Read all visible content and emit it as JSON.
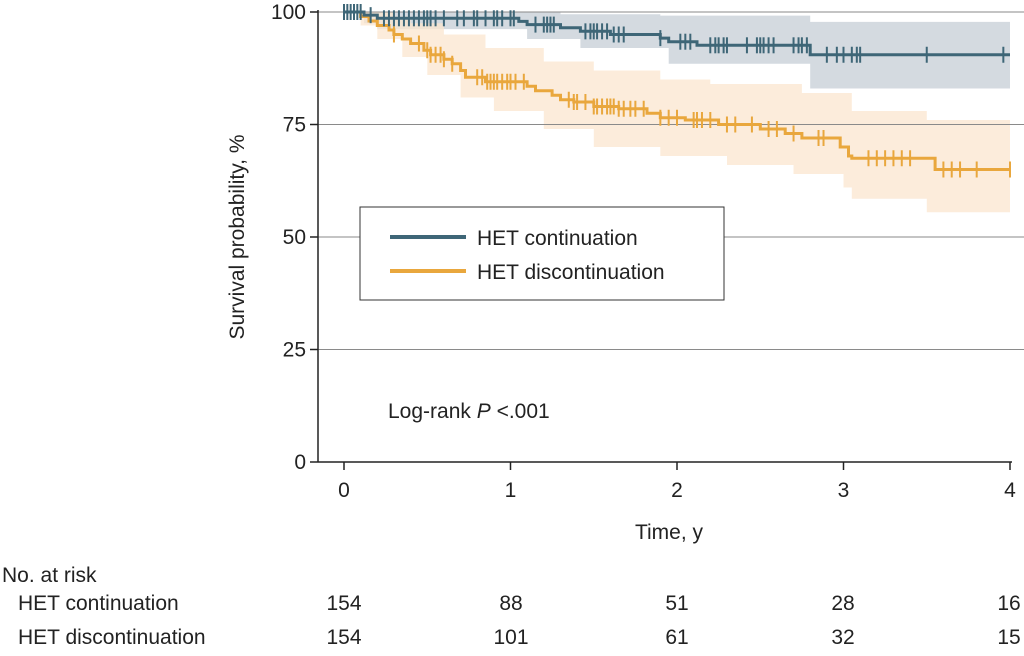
{
  "chart_data": {
    "type": "line",
    "subtype": "kaplan-meier",
    "xlabel": "Time, y",
    "ylabel": "Survival probability, %",
    "xlim": [
      0,
      4
    ],
    "ylim": [
      0,
      100
    ],
    "xticks": [
      0,
      1,
      2,
      3,
      4
    ],
    "yticks": [
      0,
      25,
      50,
      75,
      100
    ],
    "grid": "horizontal",
    "legend_position": "center",
    "annotation": {
      "prefix": "Log-rank ",
      "italic": "P",
      "suffix": " <.001"
    },
    "series": [
      {
        "name": "HET continuation",
        "color": "#3e6677",
        "band_color": "#ccd3da",
        "steps": [
          [
            0,
            100
          ],
          [
            0.12,
            99.3
          ],
          [
            0.2,
            98.6
          ],
          [
            1.05,
            97.9
          ],
          [
            1.1,
            97.2
          ],
          [
            1.3,
            96.5
          ],
          [
            1.42,
            95.7
          ],
          [
            1.6,
            95.0
          ],
          [
            1.9,
            94.2
          ],
          [
            1.95,
            93.4
          ],
          [
            2.12,
            92.6
          ],
          [
            2.8,
            90.5
          ],
          [
            4,
            90.5
          ]
        ],
        "ci_upper": [
          [
            0,
            100
          ],
          [
            0.12,
            100
          ],
          [
            1.1,
            100
          ],
          [
            1.3,
            99.5
          ],
          [
            1.9,
            99.2
          ],
          [
            2.8,
            97.8
          ],
          [
            4,
            97.8
          ]
        ],
        "ci_lower": [
          [
            0,
            100
          ],
          [
            0.12,
            97.5
          ],
          [
            0.2,
            96.2
          ],
          [
            1.1,
            94.0
          ],
          [
            1.42,
            92.0
          ],
          [
            1.95,
            88.5
          ],
          [
            2.8,
            83.0
          ],
          [
            4,
            83.0
          ]
        ],
        "censor_times": [
          0,
          0.02,
          0.04,
          0.06,
          0.08,
          0.1,
          0.16,
          0.24,
          0.27,
          0.3,
          0.33,
          0.36,
          0.39,
          0.42,
          0.45,
          0.48,
          0.5,
          0.52,
          0.55,
          0.6,
          0.68,
          0.72,
          0.78,
          0.8,
          0.85,
          0.9,
          0.92,
          0.95,
          1.0,
          1.02,
          1.15,
          1.2,
          1.22,
          1.24,
          1.26,
          1.45,
          1.48,
          1.5,
          1.52,
          1.55,
          1.58,
          1.62,
          1.65,
          1.68,
          1.9,
          2.02,
          2.05,
          2.08,
          2.2,
          2.23,
          2.25,
          2.28,
          2.3,
          2.42,
          2.48,
          2.5,
          2.52,
          2.55,
          2.58,
          2.7,
          2.73,
          2.75,
          2.78,
          2.9,
          2.96,
          3.0,
          3.05,
          3.08,
          3.1,
          3.5,
          3.96
        ],
        "at_risk": [
          154,
          88,
          51,
          28,
          16
        ]
      },
      {
        "name": "HET discontinuation",
        "color": "#e9a73d",
        "band_color": "#fbe6cf",
        "steps": [
          [
            0,
            100
          ],
          [
            0.1,
            99
          ],
          [
            0.15,
            98
          ],
          [
            0.2,
            97
          ],
          [
            0.27,
            96
          ],
          [
            0.3,
            95
          ],
          [
            0.35,
            94
          ],
          [
            0.4,
            93
          ],
          [
            0.48,
            91.5
          ],
          [
            0.52,
            90.5
          ],
          [
            0.6,
            89.5
          ],
          [
            0.65,
            88.5
          ],
          [
            0.7,
            87
          ],
          [
            0.73,
            85.5
          ],
          [
            0.85,
            84.5
          ],
          [
            1.1,
            83.5
          ],
          [
            1.15,
            82.5
          ],
          [
            1.25,
            81.5
          ],
          [
            1.3,
            80.5
          ],
          [
            1.38,
            80
          ],
          [
            1.5,
            79
          ],
          [
            1.65,
            78.5
          ],
          [
            1.82,
            77.5
          ],
          [
            1.9,
            76.5
          ],
          [
            2.05,
            76
          ],
          [
            2.25,
            75
          ],
          [
            2.5,
            74
          ],
          [
            2.65,
            73
          ],
          [
            2.75,
            72
          ],
          [
            2.98,
            70
          ],
          [
            3.03,
            68
          ],
          [
            3.05,
            67.5
          ],
          [
            3.55,
            65
          ],
          [
            4,
            65
          ]
        ],
        "ci_upper": [
          [
            0,
            100
          ],
          [
            0.2,
            100
          ],
          [
            0.3,
            99
          ],
          [
            0.4,
            97.5
          ],
          [
            0.6,
            95
          ],
          [
            0.85,
            92
          ],
          [
            1.2,
            89
          ],
          [
            1.5,
            87
          ],
          [
            1.9,
            85
          ],
          [
            2.2,
            84
          ],
          [
            2.75,
            82
          ],
          [
            3.05,
            78
          ],
          [
            3.5,
            76
          ],
          [
            4,
            76
          ]
        ],
        "ci_lower": [
          [
            0,
            100
          ],
          [
            0.1,
            97
          ],
          [
            0.2,
            94
          ],
          [
            0.35,
            90
          ],
          [
            0.5,
            86
          ],
          [
            0.7,
            81
          ],
          [
            0.9,
            78
          ],
          [
            1.2,
            74
          ],
          [
            1.5,
            70
          ],
          [
            1.9,
            68
          ],
          [
            2.3,
            66
          ],
          [
            2.7,
            64
          ],
          [
            3.0,
            61
          ],
          [
            3.05,
            58.5
          ],
          [
            3.5,
            55.5
          ],
          [
            4,
            55.5
          ]
        ],
        "censor_times": [
          0.3,
          0.45,
          0.5,
          0.52,
          0.55,
          0.58,
          0.6,
          0.65,
          0.8,
          0.83,
          0.86,
          0.88,
          0.9,
          0.92,
          0.95,
          0.98,
          1.0,
          1.03,
          1.08,
          1.35,
          1.38,
          1.4,
          1.45,
          1.5,
          1.52,
          1.55,
          1.58,
          1.6,
          1.62,
          1.65,
          1.68,
          1.72,
          1.75,
          1.8,
          1.9,
          1.95,
          2.0,
          2.1,
          2.12,
          2.15,
          2.2,
          2.3,
          2.35,
          2.45,
          2.55,
          2.6,
          2.7,
          2.85,
          2.88,
          3.15,
          3.2,
          3.25,
          3.3,
          3.35,
          3.4,
          3.6,
          3.65,
          3.7,
          3.8,
          4.0
        ],
        "at_risk": [
          154,
          101,
          61,
          32,
          15
        ]
      }
    ],
    "at_risk_header": "No. at risk"
  }
}
